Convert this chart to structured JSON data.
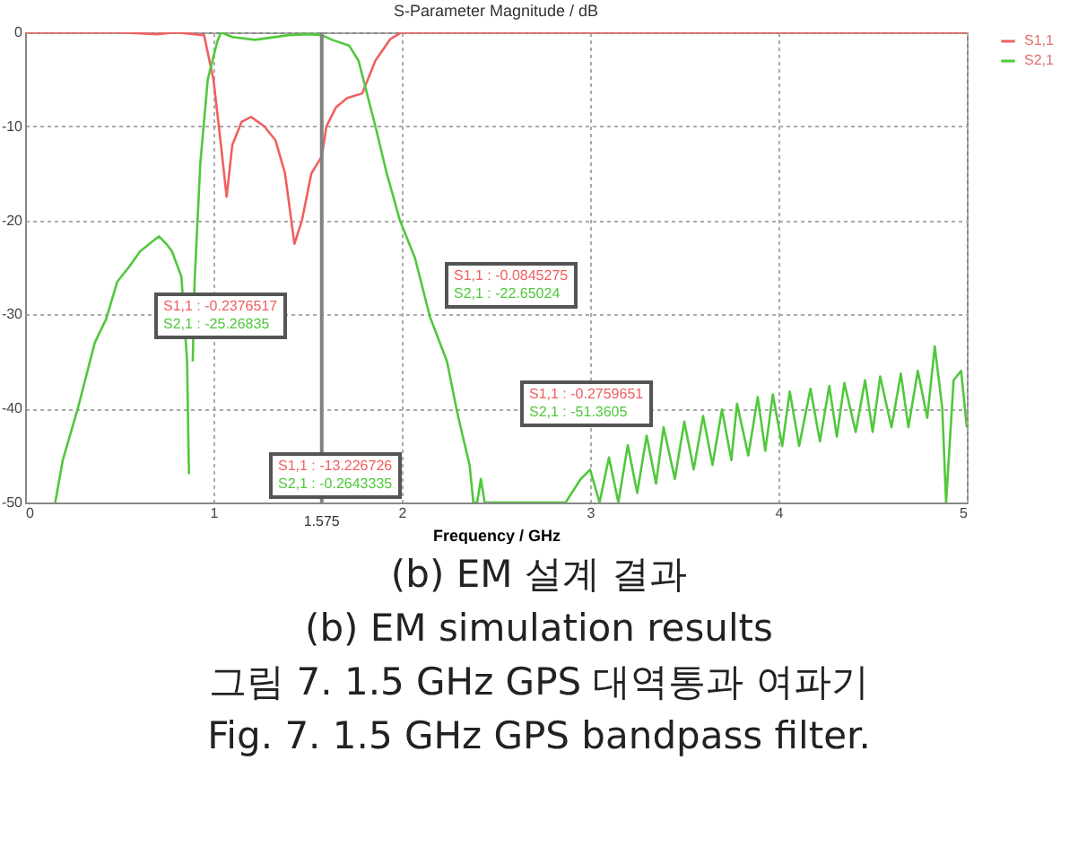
{
  "chart_data": {
    "type": "line",
    "title": "S-Parameter Magnitude / dB",
    "xlabel": "Frequency / GHz",
    "xlim": [
      0,
      5
    ],
    "xticks": [
      {
        "value": 0,
        "label": "0"
      },
      {
        "value": 1,
        "label": "1"
      },
      {
        "value": 2,
        "label": "2"
      },
      {
        "value": 3,
        "label": "3"
      },
      {
        "value": 4,
        "label": "4"
      },
      {
        "value": 5,
        "label": "5"
      }
    ],
    "ylim": [
      -50,
      0
    ],
    "yticks": [
      0,
      -10,
      -20,
      -30,
      -40,
      -50
    ],
    "grid": true,
    "legend": "top right",
    "series": [
      {
        "name": "S1,1",
        "color": "#f06060",
        "x": [
          0,
          0.5,
          0.7,
          0.8,
          0.9,
          0.95,
          1.0,
          1.04,
          1.07,
          1.1,
          1.15,
          1.2,
          1.27,
          1.33,
          1.38,
          1.43,
          1.47,
          1.52,
          1.575,
          1.6,
          1.65,
          1.71,
          1.79,
          1.86,
          1.94,
          2.0,
          2.5,
          3,
          4,
          5
        ],
        "values": [
          0,
          0,
          -0.2,
          0,
          -0.2,
          -0.3,
          -5,
          -12,
          -17.5,
          -12,
          -9.5,
          -9,
          -10,
          -11.5,
          -15,
          -22.5,
          -20,
          -15,
          -13.2,
          -10,
          -8,
          -7,
          -6.5,
          -3,
          -0.7,
          0,
          0,
          0,
          0,
          0
        ]
      },
      {
        "name": "S2,1",
        "color": "#50c83c",
        "x": [
          0.16,
          0.2,
          0.28,
          0.37,
          0.43,
          0.49,
          0.55,
          0.61,
          0.66,
          0.71,
          0.75,
          0.78,
          0.83,
          0.86,
          0.87,
          0.88,
          0.89,
          0.9,
          0.93,
          0.97,
          1.02,
          1.04,
          1.1,
          1.22,
          1.4,
          1.51,
          1.575,
          1.63,
          1.72,
          1.77,
          1.86,
          1.92,
          1.99,
          2.07,
          2.15,
          2.24,
          2.29,
          2.31,
          2.36,
          2.38,
          2.4,
          2.42,
          2.44,
          2.87,
          2.95,
          3.0,
          3.05,
          3.1,
          3.15,
          3.2,
          3.25,
          3.3,
          3.35,
          3.39,
          3.45,
          3.5,
          3.55,
          3.6,
          3.65,
          3.7,
          3.75,
          3.78,
          3.84,
          3.89,
          3.93,
          3.97,
          4.02,
          4.06,
          4.11,
          4.17,
          4.22,
          4.27,
          4.31,
          4.35,
          4.41,
          4.46,
          4.5,
          4.54,
          4.6,
          4.65,
          4.69,
          4.74,
          4.79,
          4.83,
          4.87,
          4.89,
          4.93,
          4.97,
          5.0
        ],
        "values": [
          -50,
          -45.5,
          -40,
          -33,
          -30.5,
          -26.5,
          -25,
          -23.3,
          -22.5,
          -21.7,
          -22.5,
          -23.3,
          -26,
          -35,
          -47,
          null,
          -35,
          -26.5,
          -14,
          -5,
          -1,
          0,
          -0.5,
          -0.8,
          -0.3,
          -0.2,
          -0.3,
          -0.8,
          -1.4,
          -3,
          -10,
          -15,
          -20,
          -24,
          -30.3,
          -35,
          -40,
          -41.8,
          -46,
          -50,
          -50,
          -47.5,
          -50,
          -50,
          -47.5,
          -46.5,
          -50,
          -45.2,
          -50,
          -43.9,
          -49,
          -42.9,
          -48,
          -42,
          -47.5,
          -41.4,
          -46.5,
          -40.8,
          -46,
          -40.1,
          -45.5,
          -39.5,
          -45,
          -38.8,
          -44.5,
          -38.5,
          -44,
          -38.2,
          -44,
          -37.9,
          -43.5,
          -37.6,
          -43,
          -37.3,
          -42.5,
          -37,
          -42.5,
          -36.6,
          -42,
          -36.3,
          -42,
          -36,
          -41,
          -33.4,
          -40,
          -50,
          -37,
          -36,
          -42
        ]
      }
    ],
    "ref_lines": [
      {
        "axis": "x",
        "value": 1.575,
        "label": "1.575",
        "color": "#808080"
      }
    ],
    "annotations": [
      "S1,1 : -0.2376517\nS2,1 : -25.26835",
      "S1,1 : -13.226726\nS2,1 : -0.2643335",
      "S1,1 : -0.0845275\nS2,1 : -22.65024",
      "S1,1 : -0.2759651\nS2,1 : -51.3605",
      "(b) EM 설계 결과",
      "(b) EM simulation results",
      "그림 7. 1.5 GHz GPS 대역통과 여파기",
      "Fig. 7. 1.5 GHz GPS bandpass filter."
    ]
  }
}
